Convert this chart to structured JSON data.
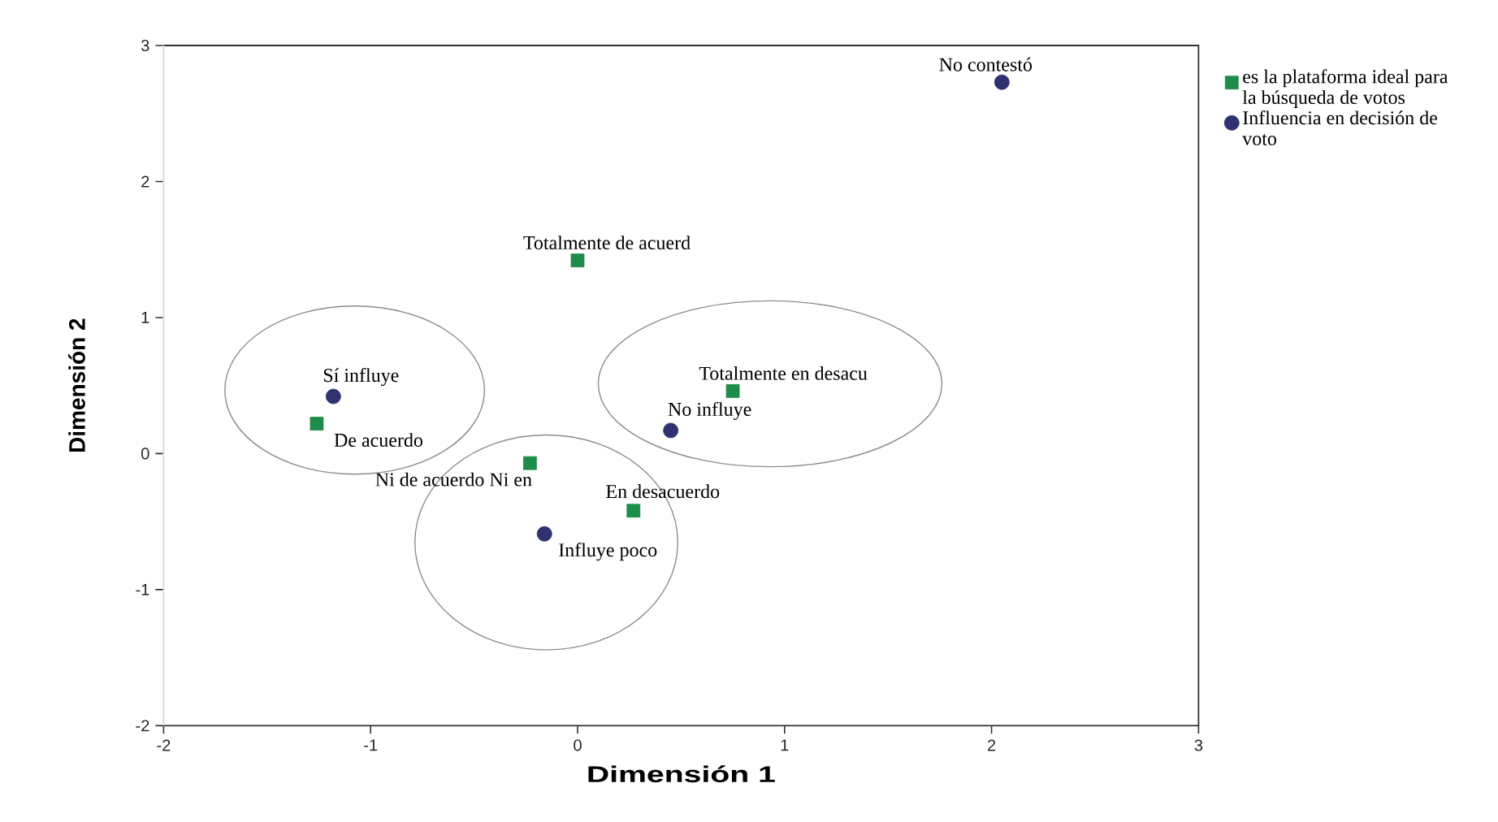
{
  "chart_data": {
    "type": "scatter",
    "xlabel": "Dimensión 1",
    "ylabel": "Dimensión 2",
    "xlim": [
      -2,
      3
    ],
    "ylim": [
      -2,
      3
    ],
    "xticks": [
      -2,
      -1,
      0,
      1,
      2,
      3
    ],
    "yticks": [
      -2,
      -1,
      0,
      1,
      2,
      3
    ],
    "legend": "top right",
    "series": [
      {
        "name": "es la plataforma ideal para la búsqueda de votos",
        "color": "#1e8c4a",
        "marker": "square",
        "x": [
          0.0,
          0.75,
          -1.26,
          -0.23,
          0.27
        ],
        "values": [
          1.42,
          0.46,
          0.22,
          -0.07,
          -0.42
        ]
      },
      {
        "name": "Influencia en decisión de voto",
        "color": "#2e3270",
        "marker": "circle",
        "x": [
          2.05,
          -1.18,
          0.45,
          -0.16
        ],
        "values": [
          2.73,
          0.42,
          0.17,
          -0.59
        ]
      }
    ],
    "annotations": [
      {
        "text": "No contestó",
        "x": 2.05,
        "y": 2.73
      },
      {
        "text": "Totalmente de acuerd",
        "x": 0.0,
        "y": 1.42
      },
      {
        "text": "Sí influye",
        "x": -1.18,
        "y": 0.42
      },
      {
        "text": "Totalmente en desacu",
        "x": 0.75,
        "y": 0.46
      },
      {
        "text": "No influye",
        "x": 0.45,
        "y": 0.17
      },
      {
        "text": "De acuerdo",
        "x": -1.26,
        "y": 0.22
      },
      {
        "text": "Ni de acuerdo Ni en",
        "x": -0.23,
        "y": -0.07
      },
      {
        "text": "En desacuerdo",
        "x": 0.27,
        "y": -0.42
      },
      {
        "text": "Influye poco",
        "x": -0.16,
        "y": -0.59
      }
    ]
  }
}
